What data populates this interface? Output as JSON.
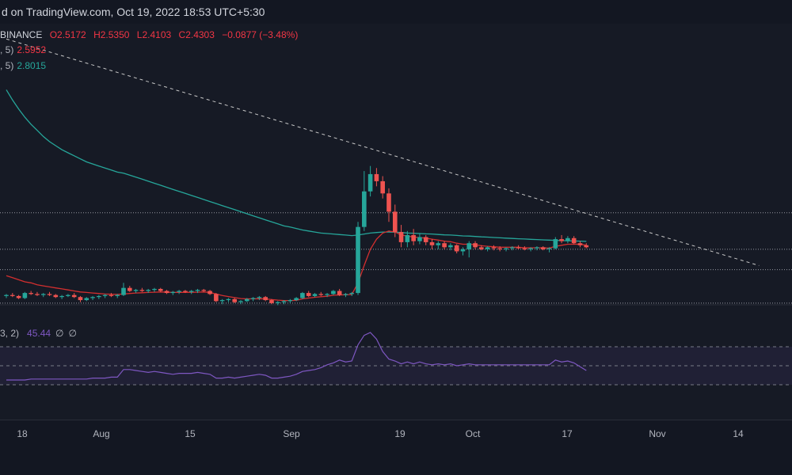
{
  "header": {
    "text": "d on TradingView.com, Oct 19, 2022 18:53 UTC+5:30"
  },
  "legend": {
    "symbol": "BINANCE",
    "open": "O2.5172",
    "high": "H2.5350",
    "low": "L2.4103",
    "close": "C2.4303",
    "change": "−0.0877 (−3.48%)",
    "ema_fast_label": ", 5)",
    "ema_fast_value": "2.5952",
    "ema_slow_label": ", 5)",
    "ema_slow_value": "2.8015",
    "rsi_label": "3, 2)",
    "rsi_value": "45.44",
    "rsi_n1": "∅",
    "rsi_n2": "∅"
  },
  "colors": {
    "background": "#161a25",
    "up": "#26a69a",
    "down": "#ef5350",
    "ema_fast": "#d32f2f",
    "ema_slow": "#26a69a",
    "rsi": "#7e57c2",
    "rsi_band": "#7e57c2",
    "trendline": "#c8c8c8",
    "axis_text": "#b2b5be"
  },
  "chart_data": {
    "type": "candlestick",
    "xaxis_ticks": [
      "18",
      "Aug",
      "15",
      "Sep",
      "19",
      "Oct",
      "17",
      "Nov",
      "14"
    ],
    "candles": [
      [
        2.32,
        2.34,
        2.3,
        2.33
      ],
      [
        2.33,
        2.35,
        2.31,
        2.32
      ],
      [
        2.32,
        2.33,
        2.29,
        2.3
      ],
      [
        2.3,
        2.36,
        2.29,
        2.35
      ],
      [
        2.35,
        2.37,
        2.33,
        2.34
      ],
      [
        2.34,
        2.36,
        2.32,
        2.33
      ],
      [
        2.33,
        2.35,
        2.31,
        2.34
      ],
      [
        2.34,
        2.36,
        2.32,
        2.33
      ],
      [
        2.33,
        2.34,
        2.3,
        2.31
      ],
      [
        2.31,
        2.33,
        2.29,
        2.32
      ],
      [
        2.32,
        2.34,
        2.31,
        2.33
      ],
      [
        2.33,
        2.35,
        2.3,
        2.31
      ],
      [
        2.31,
        2.32,
        2.26,
        2.28
      ],
      [
        2.28,
        2.31,
        2.27,
        2.3
      ],
      [
        2.3,
        2.32,
        2.28,
        2.31
      ],
      [
        2.31,
        2.33,
        2.29,
        2.32
      ],
      [
        2.32,
        2.34,
        2.3,
        2.33
      ],
      [
        2.33,
        2.35,
        2.31,
        2.32
      ],
      [
        2.32,
        2.34,
        2.3,
        2.33
      ],
      [
        2.33,
        2.45,
        2.32,
        2.4
      ],
      [
        2.4,
        2.42,
        2.36,
        2.37
      ],
      [
        2.37,
        2.39,
        2.35,
        2.38
      ],
      [
        2.38,
        2.4,
        2.36,
        2.37
      ],
      [
        2.37,
        2.39,
        2.35,
        2.38
      ],
      [
        2.38,
        2.4,
        2.36,
        2.39
      ],
      [
        2.39,
        2.4,
        2.36,
        2.37
      ],
      [
        2.37,
        2.38,
        2.34,
        2.35
      ],
      [
        2.35,
        2.37,
        2.33,
        2.36
      ],
      [
        2.36,
        2.38,
        2.34,
        2.37
      ],
      [
        2.37,
        2.38,
        2.35,
        2.36
      ],
      [
        2.36,
        2.38,
        2.34,
        2.37
      ],
      [
        2.37,
        2.39,
        2.35,
        2.38
      ],
      [
        2.38,
        2.39,
        2.36,
        2.37
      ],
      [
        2.37,
        2.38,
        2.33,
        2.34
      ],
      [
        2.34,
        2.35,
        2.26,
        2.27
      ],
      [
        2.27,
        2.29,
        2.24,
        2.28
      ],
      [
        2.28,
        2.3,
        2.26,
        2.29
      ],
      [
        2.29,
        2.3,
        2.25,
        2.26
      ],
      [
        2.26,
        2.28,
        2.24,
        2.27
      ],
      [
        2.27,
        2.3,
        2.26,
        2.29
      ],
      [
        2.29,
        2.31,
        2.27,
        2.3
      ],
      [
        2.3,
        2.32,
        2.28,
        2.31
      ],
      [
        2.31,
        2.32,
        2.27,
        2.28
      ],
      [
        2.28,
        2.29,
        2.24,
        2.25
      ],
      [
        2.25,
        2.27,
        2.23,
        2.26
      ],
      [
        2.26,
        2.28,
        2.24,
        2.27
      ],
      [
        2.27,
        2.29,
        2.25,
        2.28
      ],
      [
        2.28,
        2.31,
        2.27,
        2.3
      ],
      [
        2.3,
        2.36,
        2.29,
        2.35
      ],
      [
        2.35,
        2.37,
        2.31,
        2.32
      ],
      [
        2.32,
        2.35,
        2.31,
        2.34
      ],
      [
        2.34,
        2.36,
        2.32,
        2.33
      ],
      [
        2.33,
        2.35,
        2.31,
        2.34
      ],
      [
        2.34,
        2.38,
        2.33,
        2.37
      ],
      [
        2.37,
        2.39,
        2.32,
        2.33
      ],
      [
        2.33,
        2.35,
        2.31,
        2.34
      ],
      [
        2.34,
        2.36,
        2.32,
        2.35
      ],
      [
        2.35,
        3.05,
        2.33,
        3.0
      ],
      [
        3.0,
        3.55,
        2.96,
        3.35
      ],
      [
        3.35,
        3.6,
        3.3,
        3.52
      ],
      [
        3.52,
        3.58,
        3.4,
        3.45
      ],
      [
        3.45,
        3.5,
        3.28,
        3.33
      ],
      [
        3.33,
        3.38,
        3.05,
        3.15
      ],
      [
        3.15,
        3.22,
        2.9,
        2.95
      ],
      [
        2.95,
        3.02,
        2.8,
        2.85
      ],
      [
        2.85,
        2.96,
        2.8,
        2.92
      ],
      [
        2.92,
        2.98,
        2.82,
        2.86
      ],
      [
        2.86,
        2.94,
        2.83,
        2.9
      ],
      [
        2.9,
        2.92,
        2.82,
        2.85
      ],
      [
        2.85,
        2.88,
        2.78,
        2.82
      ],
      [
        2.82,
        2.86,
        2.78,
        2.84
      ],
      [
        2.84,
        2.86,
        2.78,
        2.8
      ],
      [
        2.8,
        2.84,
        2.77,
        2.82
      ],
      [
        2.82,
        2.83,
        2.74,
        2.76
      ],
      [
        2.76,
        2.8,
        2.72,
        2.78
      ],
      [
        2.78,
        2.86,
        2.7,
        2.84
      ],
      [
        2.84,
        2.86,
        2.78,
        2.8
      ],
      [
        2.8,
        2.82,
        2.77,
        2.78
      ],
      [
        2.78,
        2.81,
        2.76,
        2.8
      ],
      [
        2.8,
        2.82,
        2.77,
        2.79
      ],
      [
        2.79,
        2.81,
        2.76,
        2.78
      ],
      [
        2.78,
        2.8,
        2.76,
        2.79
      ],
      [
        2.79,
        2.81,
        2.77,
        2.8
      ],
      [
        2.8,
        2.82,
        2.78,
        2.79
      ],
      [
        2.79,
        2.81,
        2.77,
        2.78
      ],
      [
        2.78,
        2.8,
        2.76,
        2.79
      ],
      [
        2.79,
        2.81,
        2.77,
        2.8
      ],
      [
        2.8,
        2.81,
        2.77,
        2.78
      ],
      [
        2.78,
        2.8,
        2.75,
        2.79
      ],
      [
        2.79,
        2.9,
        2.78,
        2.88
      ],
      [
        2.88,
        2.92,
        2.84,
        2.86
      ],
      [
        2.86,
        2.91,
        2.84,
        2.89
      ],
      [
        2.89,
        2.91,
        2.83,
        2.84
      ],
      [
        2.84,
        2.86,
        2.8,
        2.82
      ],
      [
        2.82,
        2.84,
        2.79,
        2.8
      ]
    ],
    "ema_fast": [
      2.52,
      2.5,
      2.48,
      2.46,
      2.45,
      2.43,
      2.42,
      2.41,
      2.4,
      2.39,
      2.38,
      2.37,
      2.36,
      2.355,
      2.35,
      2.345,
      2.34,
      2.338,
      2.336,
      2.34,
      2.345,
      2.35,
      2.352,
      2.355,
      2.358,
      2.36,
      2.358,
      2.356,
      2.356,
      2.356,
      2.357,
      2.358,
      2.36,
      2.355,
      2.34,
      2.325,
      2.315,
      2.305,
      2.295,
      2.292,
      2.292,
      2.294,
      2.292,
      2.285,
      2.28,
      2.276,
      2.275,
      2.278,
      2.292,
      2.3,
      2.308,
      2.313,
      2.318,
      2.328,
      2.33,
      2.332,
      2.335,
      2.45,
      2.62,
      2.78,
      2.88,
      2.94,
      2.96,
      2.95,
      2.92,
      2.91,
      2.9,
      2.895,
      2.89,
      2.88,
      2.87,
      2.86,
      2.855,
      2.84,
      2.83,
      2.83,
      2.825,
      2.815,
      2.81,
      2.805,
      2.8,
      2.8,
      2.8,
      2.8,
      2.795,
      2.795,
      2.795,
      2.795,
      2.792,
      2.81,
      2.82,
      2.83,
      2.83,
      2.83,
      2.82
    ],
    "ema_slow": [
      4.35,
      4.25,
      4.16,
      4.08,
      4.01,
      3.95,
      3.89,
      3.84,
      3.8,
      3.76,
      3.73,
      3.7,
      3.67,
      3.64,
      3.62,
      3.6,
      3.58,
      3.56,
      3.54,
      3.53,
      3.51,
      3.49,
      3.47,
      3.45,
      3.43,
      3.41,
      3.39,
      3.37,
      3.35,
      3.33,
      3.31,
      3.29,
      3.27,
      3.25,
      3.23,
      3.21,
      3.19,
      3.17,
      3.15,
      3.13,
      3.11,
      3.09,
      3.07,
      3.05,
      3.03,
      3.01,
      3.0,
      2.985,
      2.97,
      2.96,
      2.95,
      2.94,
      2.935,
      2.93,
      2.925,
      2.92,
      2.915,
      2.92,
      2.93,
      2.94,
      2.945,
      2.95,
      2.95,
      2.948,
      2.945,
      2.94,
      2.938,
      2.935,
      2.932,
      2.93,
      2.926,
      2.922,
      2.92,
      2.916,
      2.912,
      2.91,
      2.906,
      2.902,
      2.9,
      2.896,
      2.893,
      2.89,
      2.887,
      2.884,
      2.881,
      2.878,
      2.876,
      2.873,
      2.87,
      2.868,
      2.866,
      2.864,
      2.862,
      2.86,
      2.858
    ],
    "rsi": [
      35,
      35,
      35,
      35,
      36,
      36,
      36,
      36,
      36,
      36,
      36,
      36,
      36,
      36,
      37,
      37,
      37,
      38,
      38,
      46,
      46,
      45,
      44,
      43,
      44,
      43,
      42,
      41,
      42,
      42,
      42,
      43,
      42,
      41,
      37,
      37,
      38,
      37,
      38,
      39,
      40,
      41,
      40,
      37,
      37,
      38,
      39,
      41,
      44,
      45,
      46,
      48,
      51,
      53,
      56,
      54,
      55,
      72,
      82,
      85,
      78,
      65,
      57,
      55,
      52,
      54,
      52,
      54,
      52,
      51,
      52,
      51,
      52,
      50,
      51,
      52,
      51,
      51,
      51,
      51,
      51,
      51,
      51,
      51,
      51,
      51,
      51,
      51,
      51,
      56,
      54,
      55,
      53,
      49,
      45
    ],
    "price_levels": [
      3.14,
      2.78,
      2.58,
      2.25
    ],
    "rsi_levels": [
      70,
      50,
      30
    ],
    "trendline": {
      "start": [
        0,
        4.85
      ],
      "end": [
        122,
        2.62
      ]
    }
  }
}
